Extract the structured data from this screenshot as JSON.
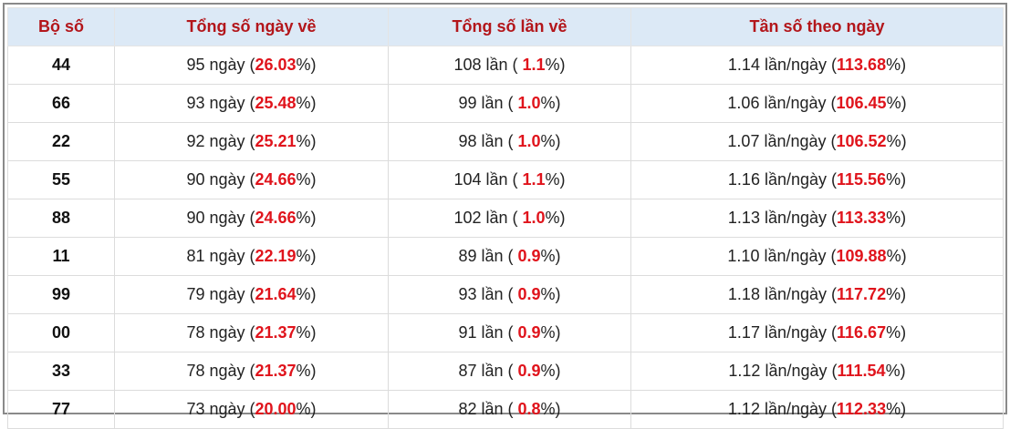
{
  "table": {
    "header": [
      "Bộ số",
      "Tổng số ngày về",
      "Tổng số lần về",
      "Tần số theo ngày"
    ],
    "rows": [
      {
        "so": "44",
        "ngay": [
          "95 ngày (",
          "26.03",
          "%)"
        ],
        "lan": [
          "108 lần ( ",
          "1.1",
          "%)"
        ],
        "tan": [
          "1.14 lần/ngày (",
          "113.68",
          "%)"
        ]
      },
      {
        "so": "66",
        "ngay": [
          "93 ngày (",
          "25.48",
          "%)"
        ],
        "lan": [
          "99 lần ( ",
          "1.0",
          "%)"
        ],
        "tan": [
          "1.06 lần/ngày (",
          "106.45",
          "%)"
        ]
      },
      {
        "so": "22",
        "ngay": [
          "92 ngày (",
          "25.21",
          "%)"
        ],
        "lan": [
          "98 lần ( ",
          "1.0",
          "%)"
        ],
        "tan": [
          "1.07 lần/ngày (",
          "106.52",
          "%)"
        ]
      },
      {
        "so": "55",
        "ngay": [
          "90 ngày (",
          "24.66",
          "%)"
        ],
        "lan": [
          "104 lần ( ",
          "1.1",
          "%)"
        ],
        "tan": [
          "1.16 lần/ngày (",
          "115.56",
          "%)"
        ]
      },
      {
        "so": "88",
        "ngay": [
          "90 ngày (",
          "24.66",
          "%)"
        ],
        "lan": [
          "102 lần ( ",
          "1.0",
          "%)"
        ],
        "tan": [
          "1.13 lần/ngày (",
          "113.33",
          "%)"
        ]
      },
      {
        "so": "11",
        "ngay": [
          "81 ngày (",
          "22.19",
          "%)"
        ],
        "lan": [
          "89 lần ( ",
          "0.9",
          "%)"
        ],
        "tan": [
          "1.10 lần/ngày (",
          "109.88",
          "%)"
        ]
      },
      {
        "so": "99",
        "ngay": [
          "79 ngày (",
          "21.64",
          "%)"
        ],
        "lan": [
          "93 lần ( ",
          "0.9",
          "%)"
        ],
        "tan": [
          "1.18 lần/ngày (",
          "117.72",
          "%)"
        ]
      },
      {
        "so": "00",
        "ngay": [
          "78 ngày (",
          "21.37",
          "%)"
        ],
        "lan": [
          "91 lần ( ",
          "0.9",
          "%)"
        ],
        "tan": [
          "1.17 lần/ngày (",
          "116.67",
          "%)"
        ]
      },
      {
        "so": "33",
        "ngay": [
          "78 ngày (",
          "21.37",
          "%)"
        ],
        "lan": [
          "87 lần ( ",
          "0.9",
          "%)"
        ],
        "tan": [
          "1.12 lần/ngày (",
          "111.54",
          "%)"
        ]
      },
      {
        "so": "77",
        "ngay": [
          "73 ngày (",
          "20.00",
          "%)"
        ],
        "lan": [
          "82 lần ( ",
          "0.8",
          "%)"
        ],
        "tan": [
          "1.12 lần/ngày (",
          "112.33",
          "%)"
        ]
      }
    ]
  }
}
